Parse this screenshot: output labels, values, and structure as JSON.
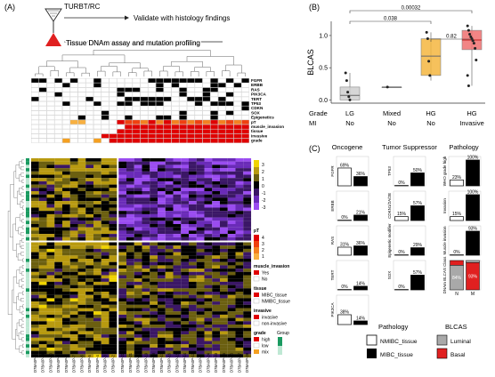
{
  "panel_a": {
    "label": "(A)",
    "procedure": "TURBT/RC",
    "validate": "Validate with histology findings",
    "assay": "Tissue DNAm assay and mutation profiling",
    "row_labels": [
      "FGFR",
      "ERBB",
      "RAS",
      "PIK3CA",
      "TERT",
      "TP53",
      "CDKN",
      "SOX",
      "Epigenetics",
      "pT",
      "muscle_invasion",
      "tissue",
      "invasive",
      "grade"
    ],
    "pt_legend": {
      "title": "pT",
      "ticks": [
        "4",
        "3",
        "2",
        "1"
      ]
    },
    "heat_ticks": [
      "3",
      "2",
      "1",
      "0",
      "-1",
      "-2",
      "-3"
    ],
    "legend": {
      "muscle_title": "muscle_invasion",
      "yes": "Yes",
      "no": "No",
      "tissue_title": "tissue",
      "mibc": "MIBC_tissue",
      "nmibc": "NMIBC_tissue",
      "invasive_title": "invasive",
      "invasive": "invasive",
      "non_invasive": "non-invasive",
      "grade_title": "grade",
      "high": "high",
      "low": "low",
      "mix": "mix"
    },
    "row_group_title": "Group",
    "col_labels": [
      "D7BA0P-12",
      "D7BA0P-11",
      "D7BA0P-10",
      "D7BA0P-9",
      "D7BA0P-8",
      "D7BA0P-7",
      "D7BA0P-6",
      "D7BA0P-5",
      "D7BA0P-4",
      "D7BA0P-3",
      "D7BA0P-2",
      "D7BA0P-22",
      "D7BA0P-21",
      "D7BA0P-20",
      "D7BA0P-19",
      "D7BA0P-18",
      "D7BA0P-17",
      "D7BA0P-16",
      "D7BA0P-15",
      "D7BA0P-14",
      "D7BA0P-13",
      "D7BA0P-1",
      "D7BA0P-24",
      "D7BA0P-23",
      "D7BA0P-25",
      "D7BA0P-26",
      "D7BA0P-27",
      "D7BA0P-28"
    ]
  },
  "panel_b": {
    "label": "(B)",
    "chart_data": {
      "type": "box",
      "ylabel": "BLCAS",
      "ylim": [
        -0.05,
        1.22
      ],
      "yticks": [
        "0.0",
        "0.5",
        "1.0"
      ],
      "row_titles": [
        "Grade",
        "MI"
      ],
      "groups": [
        {
          "grade": "LG",
          "mi": "No",
          "median": 0.07,
          "q1": 0.0,
          "q3": 0.2,
          "min": -0.02,
          "max": 0.42,
          "points": [
            0.42,
            0.3,
            0.12,
            0.05,
            0.0
          ],
          "color": "#cfcfcf"
        },
        {
          "grade": "Mixed",
          "mi": "No",
          "median": 0.2,
          "q1": 0.2,
          "q3": 0.2,
          "min": 0.2,
          "max": 0.2,
          "points": [
            0.2
          ],
          "color": "#9a9a9a"
        },
        {
          "grade": "HG",
          "mi": "No",
          "median": 0.68,
          "q1": 0.38,
          "q3": 0.95,
          "min": 0.3,
          "max": 1.05,
          "points": [
            1.05,
            0.95,
            0.6,
            0.38
          ],
          "color": "#f5b640"
        },
        {
          "grade": "HG",
          "mi": "Invasive",
          "median": 0.93,
          "q1": 0.78,
          "q3": 1.08,
          "min": 0.22,
          "max": 1.15,
          "points": [
            1.15,
            1.08,
            1.02,
            0.98,
            0.95,
            0.92,
            0.88,
            0.8,
            0.62,
            0.38,
            0.22
          ],
          "color": "#f07070"
        }
      ],
      "pvalues": [
        {
          "from": 0,
          "to": 3,
          "text": "0.00032"
        },
        {
          "from": 0,
          "to": 2,
          "text": "0.038"
        },
        {
          "from": 2,
          "to": 3,
          "text": "0.82"
        }
      ]
    }
  },
  "panel_c": {
    "label": "(C)",
    "col_titles": [
      "Oncogene",
      "Tumor Suppressor",
      "Pathology"
    ],
    "chart_data": [
      {
        "ylabel": "FGFR",
        "values": [
          69,
          36
        ],
        "labels": [
          "69%",
          "36%"
        ]
      },
      {
        "ylabel": "ERBB",
        "values": [
          0,
          21
        ],
        "labels": [
          "0%",
          "21%"
        ]
      },
      {
        "ylabel": "RAS",
        "values": [
          31,
          36
        ],
        "labels": [
          "31%",
          "36%"
        ]
      },
      {
        "ylabel": "TERT",
        "values": [
          0,
          14
        ],
        "labels": [
          "0%",
          "14%"
        ]
      },
      {
        "ylabel": "PIK3CA",
        "values": [
          38,
          14
        ],
        "labels": [
          "38%",
          "14%"
        ]
      },
      {
        "ylabel": "TP53",
        "values": [
          0,
          50
        ],
        "labels": [
          "0%",
          "50%"
        ]
      },
      {
        "ylabel": "CDKN1/2A/2B",
        "values": [
          15,
          57
        ],
        "labels": [
          "15%",
          "57%"
        ]
      },
      {
        "ylabel": "Epigenetic modifier",
        "values": [
          0,
          29
        ],
        "labels": [
          "0%",
          "29%"
        ]
      },
      {
        "ylabel": "SOX",
        "values": [
          0,
          57
        ],
        "labels": [
          "0%",
          "57%"
        ]
      },
      {
        "ylabel": "WHO grade high",
        "values": [
          23,
          100
        ],
        "labels": [
          "23%",
          "100%"
        ]
      },
      {
        "ylabel": "Invasion",
        "values": [
          15,
          100
        ],
        "labels": [
          "15%",
          "100%"
        ]
      },
      {
        "ylabel": "Muscle invasion",
        "values": [
          0,
          93
        ],
        "labels": [
          "0%",
          "93%"
        ]
      },
      {
        "ylabel": "DNAm BLCAS Class",
        "stacked": true,
        "bars": [
          {
            "luminal": 84,
            "basal": 16,
            "label": "84%"
          },
          {
            "luminal": 7,
            "basal": 93,
            "label": "93%"
          }
        ],
        "xlabels": [
          "N",
          "M"
        ]
      }
    ],
    "legend": {
      "pathology_title": "Pathology",
      "nmibc": "NMIBC_tissue",
      "mibc": "MIBC_tissue",
      "blcas_title": "BLCAS",
      "luminal": "Luminal",
      "basal": "Basal"
    }
  }
}
